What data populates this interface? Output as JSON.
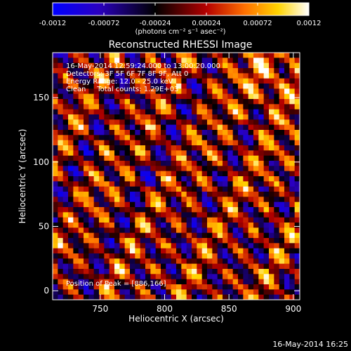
{
  "colorbar": {
    "ticks": [
      "-0.0012",
      "-0.00072",
      "-0.00024",
      "0.00024",
      "0.00072",
      "0.0012"
    ],
    "tick_values": [
      -0.0012,
      -0.00072,
      -0.00024,
      0.00024,
      0.00072,
      0.0012
    ],
    "range": [
      -0.0012,
      0.0012
    ],
    "unit_label": "(photons cm⁻² s⁻¹ asec⁻²)",
    "palette": [
      "#0000ff",
      "#2a00c0",
      "#000000",
      "#b40000",
      "#ff7000",
      "#ffd400",
      "#ffffff"
    ]
  },
  "chart_data": {
    "type": "heatmap",
    "title": "Reconstructed RHESSI Image",
    "xlabel": "Heliocentric X (arcsec)",
    "ylabel": "Heliocentric Y (arcsec)",
    "xlim": [
      713,
      905
    ],
    "ylim": [
      -7,
      185
    ],
    "x_ticks": [
      750,
      800,
      850,
      900
    ],
    "y_ticks": [
      0,
      50,
      100,
      150
    ],
    "x_tick_labels": [
      "750",
      "800",
      "850",
      "900"
    ],
    "y_tick_labels": [
      "0",
      "50",
      "100",
      "150"
    ],
    "grid": false,
    "pixel_size_arcsec": 4,
    "colormap": "rhessi blue-black-red-yellow-white",
    "annotations": [
      "16-May-2014 12:59:24.000 to 13:00:20.000",
      "Detectors: 3F 5F 6F 7F 8F 9F, Att 0",
      "Energy Range: 12.0 - 25.0 keV",
      "Clean     Total counts: 1.29E+03"
    ],
    "peak_text": "Position of Peak = [886,166]",
    "peak": [
      886,
      166
    ]
  },
  "footer": {
    "timestamp": "16-May-2014 16:25"
  }
}
